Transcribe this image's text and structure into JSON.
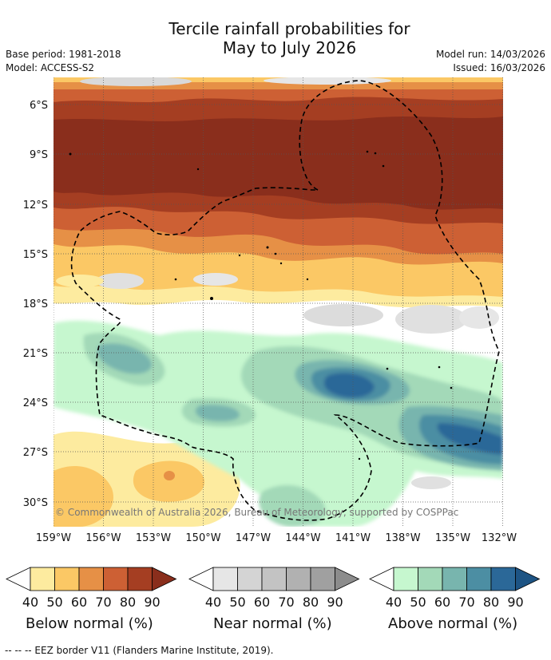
{
  "title": {
    "line1": "Tercile rainfall probabilities for",
    "line2": "May to July 2026"
  },
  "meta": {
    "base_period": "Base period: 1981-2018",
    "model": "Model: ACCESS-S2",
    "model_run": "Model run: 14/03/2026",
    "issued": "Issued: 16/03/2026"
  },
  "axes": {
    "lat_labels": [
      "6°S",
      "9°S",
      "12°S",
      "15°S",
      "18°S",
      "21°S",
      "24°S",
      "27°S",
      "30°S"
    ],
    "lon_labels": [
      "159°W",
      "156°W",
      "153°W",
      "150°W",
      "147°W",
      "144°W",
      "141°W",
      "138°W",
      "135°W",
      "132°W"
    ]
  },
  "copyright": "© Commonwealth of Australia 2026, Bureau of Meteorology, supported by COSPPac",
  "legends": [
    {
      "label": "Below normal (%)",
      "ticks": [
        "40",
        "50",
        "60",
        "70",
        "80",
        "90"
      ],
      "colors": [
        "#fdeb9f",
        "#fbc865",
        "#e69046",
        "#cd6034",
        "#a53e22",
        "#8a2e1c"
      ]
    },
    {
      "label": "Near normal (%)",
      "ticks": [
        "40",
        "50",
        "60",
        "70",
        "80",
        "90"
      ],
      "colors": [
        "#e6e6e6",
        "#d4d4d4",
        "#c3c3c3",
        "#b1b1b1",
        "#a0a0a0",
        "#8c8c8c"
      ]
    },
    {
      "label": "Above normal (%)",
      "ticks": [
        "40",
        "50",
        "60",
        "70",
        "80",
        "90"
      ],
      "colors": [
        "#c6f7cf",
        "#a3d9b8",
        "#78b5ae",
        "#4c8ea3",
        "#2b6898",
        "#1d5484"
      ]
    }
  ],
  "footnote": "-- -- -- EEZ border V11 (Flanders Marine Institute, 2019).",
  "colors": {
    "white": "#ffffff",
    "grid": "#555555"
  }
}
